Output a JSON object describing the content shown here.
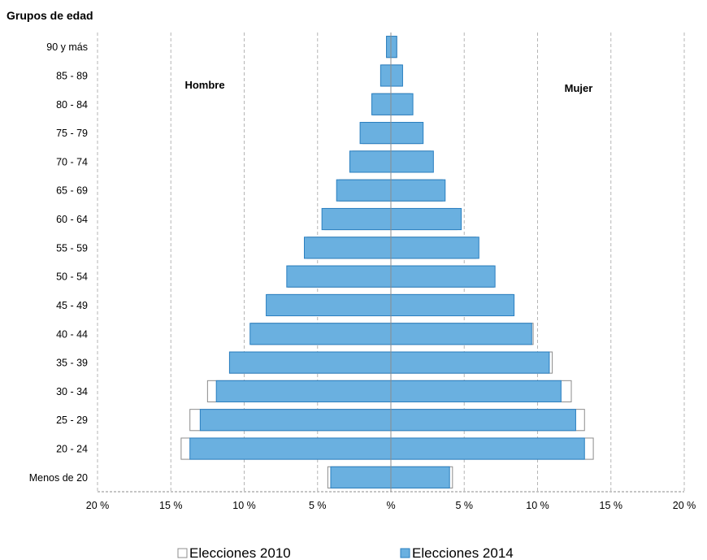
{
  "chart_data": {
    "type": "bar",
    "orientation": "horizontal-population-pyramid",
    "title": "Grupos de edad",
    "categories": [
      "90 y más",
      "85 - 89",
      "80 - 84",
      "75 - 79",
      "70 - 74",
      "65 - 69",
      "60 - 64",
      "55 - 59",
      "50 - 54",
      "45 - 49",
      "40 - 44",
      "35 - 39",
      "30 - 34",
      "25 - 29",
      "20 - 24",
      "Menos de 20"
    ],
    "side_labels": {
      "left": "Hombre",
      "right": "Mujer"
    },
    "series": [
      {
        "name": "Elecciones 2010",
        "color": "#ffffff",
        "stroke": "#8c8c8c",
        "hombre": [
          0.3,
          0.6,
          1.2,
          1.9,
          2.6,
          3.5,
          4.5,
          5.7,
          7.0,
          8.4,
          9.5,
          11.0,
          12.5,
          13.7,
          14.3,
          4.3
        ],
        "mujer": [
          0.4,
          0.7,
          1.3,
          2.0,
          2.7,
          3.5,
          4.5,
          5.8,
          7.0,
          8.3,
          9.7,
          11.0,
          12.3,
          13.2,
          13.8,
          4.2
        ]
      },
      {
        "name": "Elecciones 2014",
        "color": "#6ab0e0",
        "stroke": "#2a7fc0",
        "hombre": [
          0.3,
          0.7,
          1.3,
          2.1,
          2.8,
          3.7,
          4.7,
          5.9,
          7.1,
          8.5,
          9.6,
          11.0,
          11.9,
          13.0,
          13.7,
          4.1
        ],
        "mujer": [
          0.4,
          0.8,
          1.5,
          2.2,
          2.9,
          3.7,
          4.8,
          6.0,
          7.1,
          8.4,
          9.6,
          10.8,
          11.6,
          12.6,
          13.2,
          4.0
        ]
      }
    ],
    "xlim": [
      -20,
      20
    ],
    "x_ticks": [
      {
        "value": -20,
        "label": "20 %"
      },
      {
        "value": -15,
        "label": "15 %"
      },
      {
        "value": -10,
        "label": "10 %"
      },
      {
        "value": -5,
        "label": "5 %"
      },
      {
        "value": 0,
        "label": "%"
      },
      {
        "value": 5,
        "label": "5 %"
      },
      {
        "value": 10,
        "label": "10 %"
      },
      {
        "value": 15,
        "label": "15 %"
      },
      {
        "value": 20,
        "label": "20 %"
      }
    ],
    "grid": true,
    "legend_position": "bottom"
  }
}
